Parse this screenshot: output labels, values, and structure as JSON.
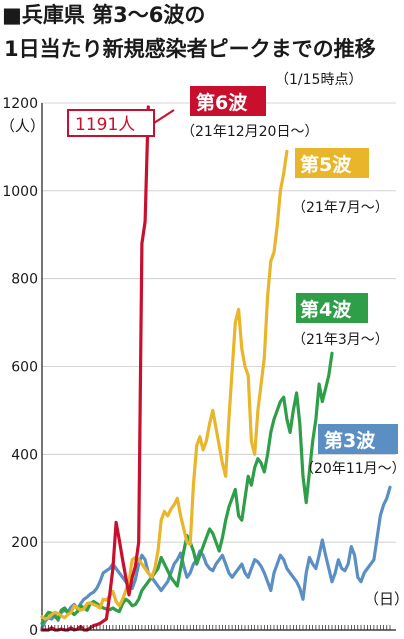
{
  "header": {
    "line1": "■兵庫県 第3～6波の",
    "line2": "1日当たり新規感染者ピークまでの推移",
    "date_note": "（1/15時点）"
  },
  "chart_data": {
    "type": "line",
    "ylabel": "（人）",
    "xlabel": "（日）",
    "ylim": [
      0,
      1200
    ],
    "yticks": [
      "0",
      "200",
      "400",
      "600",
      "800",
      "1000",
      "1200"
    ],
    "grid": "horizontal",
    "annotation_peak": "1191人",
    "series": [
      {
        "name": "第3波",
        "period": "（20年11月～）",
        "color": "#5b8fc4",
        "values": [
          5,
          20,
          28,
          25,
          35,
          22,
          40,
          45,
          40,
          52,
          58,
          48,
          60,
          70,
          75,
          82,
          86,
          95,
          110,
          130,
          135,
          140,
          150,
          140,
          130,
          120,
          110,
          100,
          95,
          115,
          150,
          170,
          160,
          130,
          120,
          110,
          100,
          90,
          100,
          110,
          130,
          150,
          160,
          175,
          145,
          120,
          130,
          150,
          160,
          180,
          170,
          150,
          140,
          135,
          150,
          160,
          170,
          150,
          130,
          120,
          130,
          140,
          150,
          130,
          120,
          140,
          160,
          155,
          145,
          130,
          110,
          90,
          130,
          150,
          170,
          160,
          140,
          130,
          120,
          110,
          95,
          70,
          130,
          165,
          150,
          140,
          170,
          205,
          170,
          140,
          110,
          130,
          160,
          140,
          135,
          150,
          190,
          170,
          120,
          110,
          130,
          140,
          150,
          160,
          210,
          260,
          285,
          300,
          325
        ]
      },
      {
        "name": "第4波",
        "period": "（21年3月～）",
        "color": "#2e9e48",
        "values": [
          15,
          30,
          40,
          38,
          30,
          25,
          45,
          50,
          40,
          42,
          35,
          42,
          55,
          50,
          45,
          60,
          65,
          60,
          55,
          50,
          48,
          46,
          50,
          45,
          42,
          60,
          70,
          65,
          55,
          58,
          70,
          90,
          100,
          110,
          120,
          130,
          140,
          165,
          150,
          135,
          120,
          110,
          100,
          140,
          180,
          215,
          200,
          180,
          150,
          170,
          190,
          210,
          230,
          220,
          200,
          180,
          210,
          250,
          280,
          300,
          320,
          260,
          250,
          300,
          350,
          330,
          370,
          390,
          380,
          360,
          400,
          450,
          480,
          500,
          520,
          530,
          480,
          450,
          500,
          540,
          470,
          350,
          290,
          360,
          430,
          480,
          560,
          520,
          550,
          580,
          630
        ]
      },
      {
        "name": "第5波",
        "period": "（21年7月～）",
        "color": "#e8b52b",
        "values": [
          30,
          25,
          28,
          35,
          40,
          38,
          32,
          28,
          35,
          40,
          55,
          50,
          45,
          48,
          60,
          62,
          58,
          55,
          50,
          70,
          68,
          78,
          88,
          65,
          55,
          70,
          90,
          110,
          160,
          165,
          160,
          150,
          140,
          130,
          120,
          140,
          180,
          250,
          270,
          260,
          275,
          285,
          300,
          260,
          230,
          200,
          195,
          330,
          420,
          440,
          410,
          430,
          470,
          500,
          460,
          420,
          380,
          350,
          480,
          590,
          700,
          730,
          640,
          600,
          580,
          430,
          400,
          500,
          560,
          620,
          760,
          840,
          860,
          920,
          1000,
          1040,
          1090
        ]
      },
      {
        "name": "第6波",
        "period": "（21年12月20日～）",
        "color": "#c8102e",
        "values": [
          0,
          0,
          0,
          5,
          0,
          0,
          2,
          0,
          0,
          5,
          0,
          2,
          8,
          0,
          0,
          5,
          10,
          12,
          15,
          20,
          25,
          80,
          140,
          245,
          205,
          160,
          120,
          80,
          120,
          145,
          200,
          880,
          930,
          1191
        ]
      }
    ]
  }
}
